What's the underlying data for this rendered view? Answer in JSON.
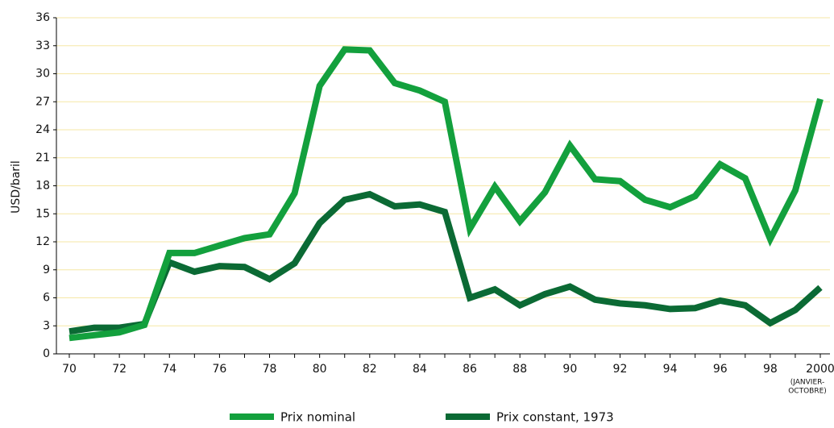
{
  "chart_data": {
    "type": "line",
    "y_label": "USD/baril",
    "categories": [
      "70",
      null,
      "72",
      null,
      "74",
      null,
      "76",
      null,
      "78",
      null,
      "80",
      null,
      "82",
      null,
      "84",
      null,
      "86",
      null,
      "88",
      null,
      "90",
      null,
      "92",
      null,
      "94",
      null,
      "96",
      null,
      "98",
      null,
      "2000"
    ],
    "annotation": [
      "(JANVIER-",
      "OCTOBRE)"
    ],
    "series": [
      {
        "name": "Prix nominal",
        "color": "#13a03d",
        "values": [
          1.7,
          2.0,
          2.3,
          3.1,
          10.8,
          10.8,
          11.6,
          12.4,
          12.8,
          17.2,
          28.7,
          32.6,
          32.5,
          29.0,
          28.2,
          27.0,
          13.4,
          17.9,
          14.2,
          17.3,
          22.3,
          18.7,
          18.5,
          16.5,
          15.7,
          16.9,
          20.3,
          18.8,
          12.3,
          17.5,
          27.3
        ]
      },
      {
        "name": "Prix constant, 1973",
        "color": "#0b6a34",
        "values": [
          2.4,
          2.8,
          2.8,
          3.2,
          9.8,
          8.8,
          9.4,
          9.3,
          8.0,
          9.7,
          14.0,
          16.5,
          17.1,
          15.8,
          16.0,
          15.2,
          6.0,
          6.9,
          5.2,
          6.4,
          7.2,
          5.8,
          5.4,
          5.2,
          4.8,
          4.9,
          5.7,
          5.2,
          3.3,
          4.7,
          7.1
        ]
      }
    ],
    "ylim": [
      0,
      36
    ],
    "yticks": [
      0,
      3,
      6,
      9,
      12,
      15,
      18,
      21,
      24,
      27,
      30,
      33,
      36
    ],
    "grid": true
  }
}
